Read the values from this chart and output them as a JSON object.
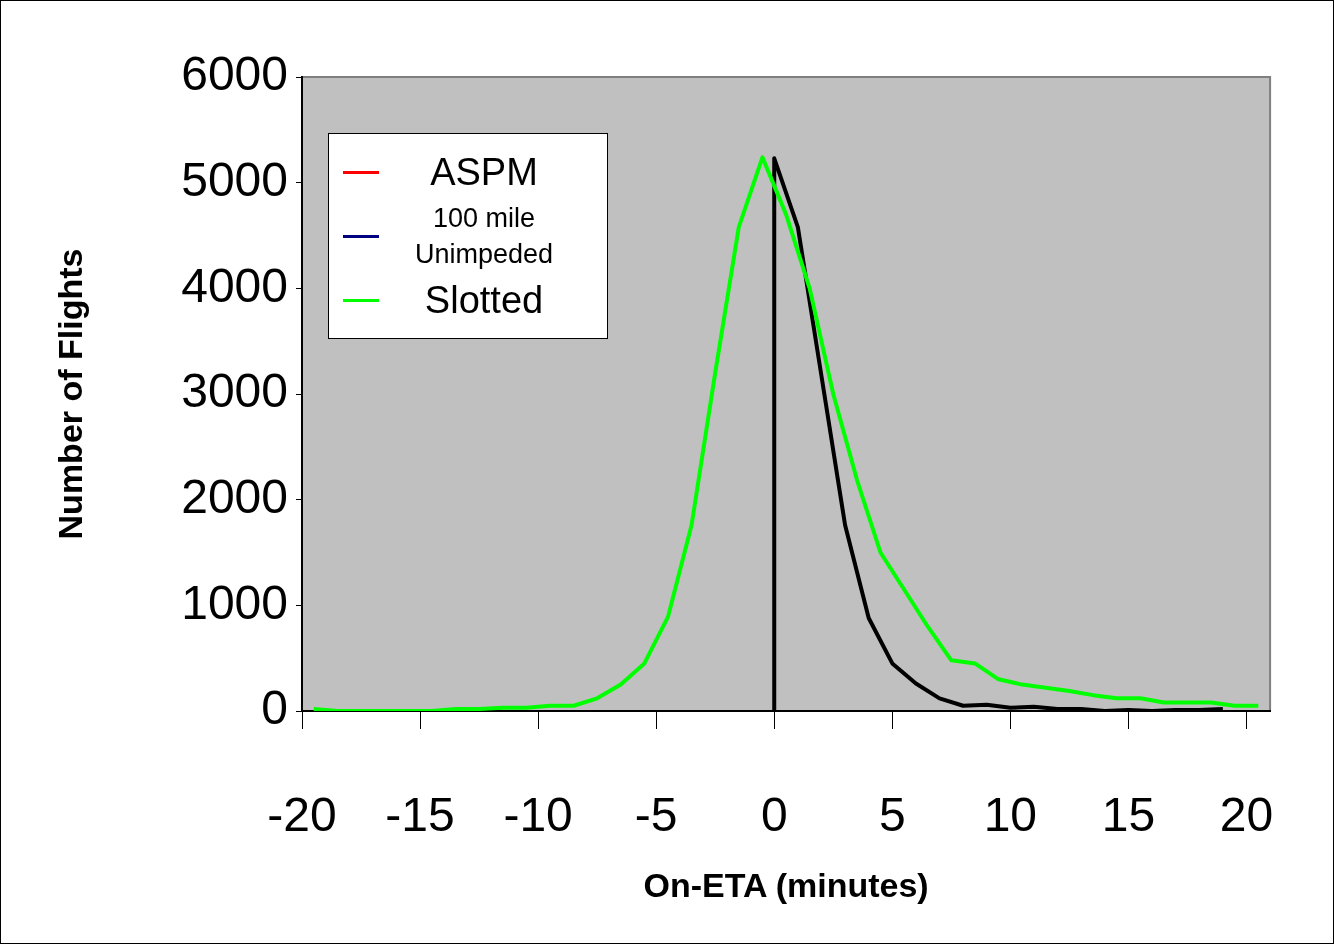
{
  "chart_data": {
    "type": "line",
    "xlabel": "On-ETA (minutes)",
    "ylabel": "Number of Flights",
    "xlim": [
      -20,
      21
    ],
    "xticks": [
      -20,
      -15,
      -10,
      -5,
      0,
      5,
      10,
      15,
      20
    ],
    "ylim": [
      0,
      6000
    ],
    "yticks": [
      0,
      1000,
      2000,
      3000,
      4000,
      5000,
      6000
    ],
    "legend": "top left",
    "marker": "none",
    "series": [
      {
        "name": "ASPM",
        "color": "#ff0000"
      },
      {
        "name": "100 mile Unimpeded",
        "color": "#000080"
      },
      {
        "name": "Slotted",
        "color": "#00ff00",
        "x": [
          -19.5,
          -18.5,
          -17.5,
          -16.5,
          -15.5,
          -14.5,
          -13.5,
          -12.5,
          -11.5,
          -10.5,
          -9.5,
          -8.5,
          -7.5,
          -6.5,
          -5.5,
          -4.5,
          -3.5,
          -2.5,
          -1.5,
          -0.5,
          0.5,
          1.5,
          2.5,
          3.5,
          4.5,
          5.5,
          6.5,
          7.5,
          8.5,
          9.5,
          10.5,
          11.5,
          12.5,
          13.5,
          14.5,
          15.5,
          16.5,
          17.5,
          18.5,
          19.5,
          20.5
        ],
        "values": [
          20,
          0,
          0,
          0,
          0,
          0,
          20,
          20,
          30,
          30,
          50,
          50,
          120,
          250,
          450,
          890,
          1760,
          3200,
          4580,
          5240,
          4700,
          4000,
          3000,
          2190,
          1500,
          1150,
          800,
          480,
          450,
          300,
          250,
          220,
          190,
          150,
          120,
          120,
          80,
          80,
          80,
          50,
          50
        ]
      },
      {
        "color": "#000000",
        "x": [
          0,
          0,
          1,
          2,
          3,
          4,
          5,
          6,
          7,
          8,
          9,
          10,
          11,
          12,
          13,
          14,
          15,
          16,
          17,
          18,
          19
        ],
        "values": [
          0,
          5230,
          4580,
          3170,
          1760,
          880,
          450,
          260,
          120,
          50,
          60,
          30,
          40,
          20,
          20,
          0,
          10,
          0,
          10,
          10,
          20
        ]
      }
    ]
  }
}
